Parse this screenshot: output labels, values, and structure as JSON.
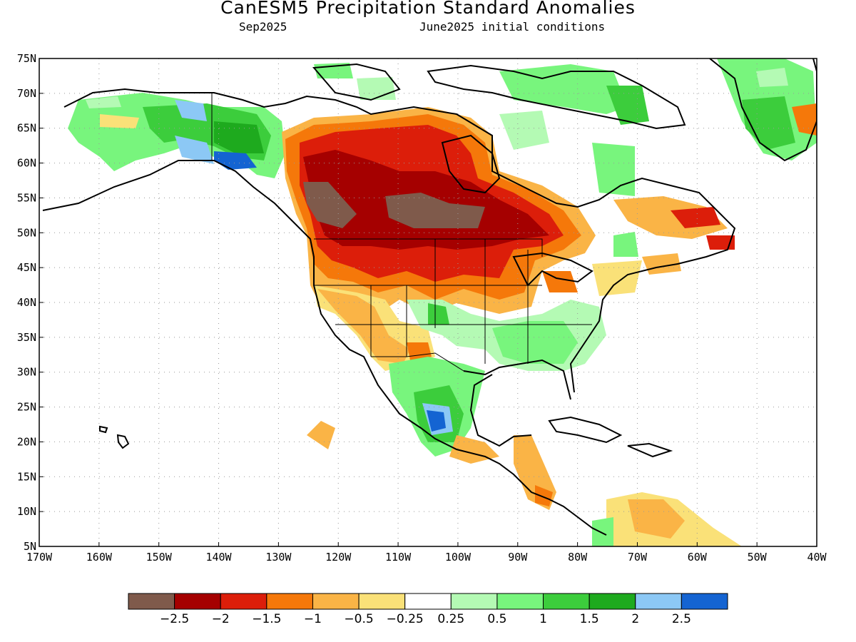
{
  "title": "CanESM5 Precipitation Standard Anomalies",
  "subtitle_left": "Sep2025",
  "subtitle_right": "June2025 initial conditions",
  "map": {
    "lon_range": [
      -170,
      -40
    ],
    "lat_range": [
      5,
      75
    ],
    "lat_ticks": [
      "75N",
      "70N",
      "65N",
      "60N",
      "55N",
      "50N",
      "45N",
      "40N",
      "35N",
      "30N",
      "25N",
      "20N",
      "15N",
      "10N",
      "5N"
    ],
    "lon_ticks": [
      "170W",
      "160W",
      "150W",
      "140W",
      "130W",
      "120W",
      "110W",
      "100W",
      "90W",
      "80W",
      "70W",
      "60W",
      "50W",
      "40W"
    ],
    "grid": "dotted",
    "background_land_ocean": "#ffffff",
    "coast_color": "#000000"
  },
  "colorbar": {
    "colors": [
      "#7f5a4b",
      "#a50000",
      "#dc1e0a",
      "#f5780a",
      "#fab446",
      "#fae178",
      "#ffffff",
      "#b4fab4",
      "#78f57d",
      "#3ccd3c",
      "#1eaa1e",
      "#8cc8f5",
      "#1464d2"
    ],
    "labels": [
      "−2.5",
      "−2",
      "−1.5",
      "−1",
      "−0.5",
      "−0.25",
      "0.25",
      "0.5",
      "1",
      "1.5",
      "2",
      "2.5"
    ]
  },
  "anomaly_regions": [
    {
      "name": "western-canada-prairies",
      "level": -2.5,
      "lon": -110,
      "lat": 52
    },
    {
      "name": "pacific-northwest",
      "level": -2.0,
      "lon": -120,
      "lat": 47
    },
    {
      "name": "mexico-gulf-coast",
      "level": 2.5,
      "lon": -103,
      "lat": 22
    },
    {
      "name": "alaska-southeast",
      "level": 2.5,
      "lon": -137,
      "lat": 61
    },
    {
      "name": "southeast-us",
      "level": 1.0,
      "lon": -87,
      "lat": 34
    }
  ]
}
